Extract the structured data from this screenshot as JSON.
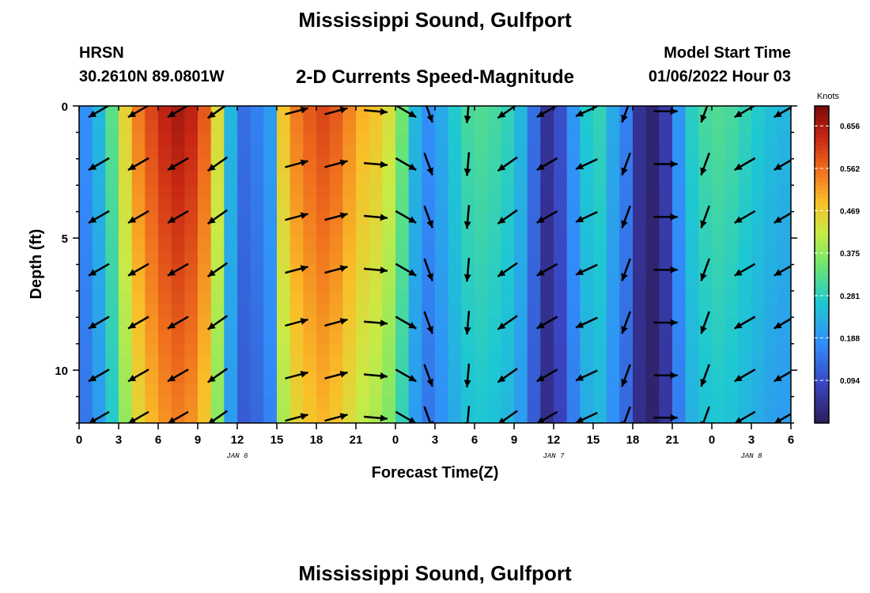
{
  "header": {
    "title": "Mississippi Sound, Gulfport",
    "station": "HRSN",
    "coords": "30.2610N  89.0801W",
    "subtitle": "2-D Currents Speed-Magnitude",
    "model_start_label": "Model Start Time",
    "model_start_value": "01/06/2022 Hour 03"
  },
  "footer": {
    "title": "Mississippi Sound, Gulfport"
  },
  "chart_data": {
    "type": "heatmap",
    "xlabel": "Forecast Time(Z)",
    "ylabel": "Depth (ft)",
    "x_tick_labels": [
      "0",
      "3",
      "6",
      "9",
      "12",
      "15",
      "18",
      "21",
      "0",
      "3",
      "6",
      "9",
      "12",
      "15",
      "18",
      "21",
      "0",
      "3",
      "6"
    ],
    "date_labels": [
      {
        "text": "JAN 6",
        "tick_index": 4
      },
      {
        "text": "JAN 7",
        "tick_index": 12
      },
      {
        "text": "JAN 8",
        "tick_index": 17
      }
    ],
    "xlim_hours": [
      0,
      54
    ],
    "ylim_ft": [
      0,
      12
    ],
    "y_ticks": [
      0,
      5,
      10
    ],
    "colorbar": {
      "unit": "Knots",
      "ticks": [
        0.656,
        0.562,
        0.469,
        0.375,
        0.281,
        0.188,
        0.094
      ],
      "range": [
        0.0,
        0.7
      ]
    },
    "depth_profile_ft": [
      0.2,
      2.2,
      4.2,
      6.2,
      8.2,
      10.2,
      11.8
    ],
    "speed_by_hour": [
      0.18,
      0.24,
      0.33,
      0.46,
      0.55,
      0.6,
      0.64,
      0.66,
      0.64,
      0.58,
      0.45,
      0.24,
      0.14,
      0.16,
      0.2,
      0.48,
      0.55,
      0.58,
      0.6,
      0.58,
      0.54,
      0.5,
      0.48,
      0.44,
      0.35,
      0.24,
      0.18,
      0.22,
      0.27,
      0.31,
      0.32,
      0.31,
      0.29,
      0.24,
      0.14,
      0.05,
      0.1,
      0.19,
      0.27,
      0.29,
      0.22,
      0.16,
      0.05,
      0.02,
      0.07,
      0.19,
      0.28,
      0.31,
      0.32,
      0.31,
      0.29,
      0.27,
      0.25,
      0.24,
      0.22
    ],
    "arrow_times_h": [
      1.5,
      4.5,
      7.5,
      10.5,
      16.5,
      19.5,
      22.5,
      24.8,
      26.5,
      29.5,
      32.5,
      35.5,
      38.5,
      41.5,
      44.5,
      47.5,
      50.5,
      53.5
    ],
    "arrow_direction_deg": [
      240,
      240,
      240,
      235,
      75,
      75,
      95,
      120,
      160,
      185,
      235,
      240,
      245,
      200,
      90,
      200,
      240,
      240
    ]
  }
}
